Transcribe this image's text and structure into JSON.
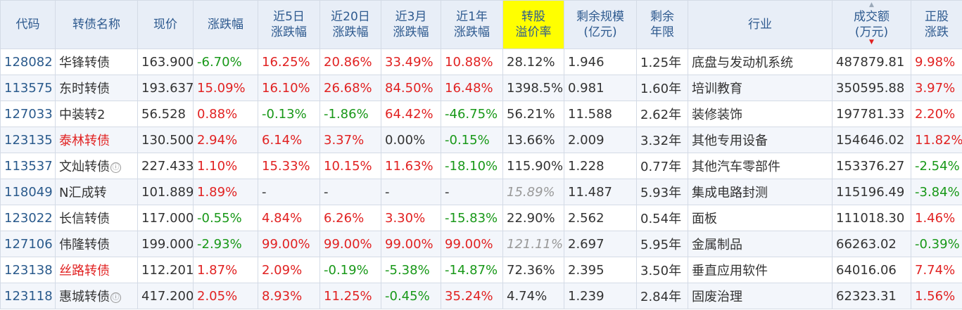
{
  "headers": {
    "code": "代码",
    "name": "转债名称",
    "price": "现价",
    "change": "涨跌幅",
    "change_5d_1": "近5日",
    "change_5d_2": "涨跌幅",
    "change_20d_1": "近20日",
    "change_20d_2": "涨跌幅",
    "change_3m_1": "近3月",
    "change_3m_2": "涨跌幅",
    "change_1y_1": "近1年",
    "change_1y_2": "涨跌幅",
    "premium_1": "转股",
    "premium_2": "溢价率",
    "scale_1": "剩余规模",
    "scale_2": "(亿元)",
    "term_1": "剩余",
    "term_2": "年限",
    "industry": "行业",
    "volume_1": "成交额",
    "volume_2": "(万元)",
    "stock_1": "正股",
    "stock_2": "涨跌"
  },
  "info_icon": "ⓘ",
  "rows": [
    {
      "code": "128082",
      "name": "华锋转债",
      "name_color": "normal",
      "info": false,
      "price": "163.900",
      "change": "-6.70%",
      "change_c": "green",
      "d5": "16.25%",
      "d5_c": "red",
      "d20": "20.86%",
      "d20_c": "red",
      "m3": "33.49%",
      "m3_c": "red",
      "y1": "10.88%",
      "y1_c": "red",
      "premium": "28.12%",
      "premium_c": "normal",
      "scale": "1.946",
      "term": "1.25年",
      "industry": "底盘与发动机系统",
      "volume": "487879.81",
      "stock": "9.98%",
      "stock_c": "red"
    },
    {
      "code": "113575",
      "name": "东时转债",
      "name_color": "normal",
      "info": false,
      "price": "193.637",
      "change": "15.09%",
      "change_c": "red",
      "d5": "16.10%",
      "d5_c": "red",
      "d20": "26.68%",
      "d20_c": "red",
      "m3": "84.50%",
      "m3_c": "red",
      "y1": "16.48%",
      "y1_c": "red",
      "premium": "1398.5%",
      "premium_c": "normal",
      "scale": "0.981",
      "term": "1.60年",
      "industry": "培训教育",
      "volume": "350595.88",
      "stock": "3.97%",
      "stock_c": "red"
    },
    {
      "code": "127033",
      "name": "中装转2",
      "name_color": "normal",
      "info": false,
      "price": "56.528",
      "change": "0.88%",
      "change_c": "red",
      "d5": "-0.13%",
      "d5_c": "green",
      "d20": "-1.86%",
      "d20_c": "green",
      "m3": "64.42%",
      "m3_c": "red",
      "y1": "-46.75%",
      "y1_c": "green",
      "premium": "56.21%",
      "premium_c": "normal",
      "scale": "11.588",
      "term": "2.62年",
      "industry": "装修装饰",
      "volume": "197781.33",
      "stock": "2.20%",
      "stock_c": "red"
    },
    {
      "code": "123135",
      "name": "泰林转债",
      "name_color": "red",
      "info": false,
      "price": "130.500",
      "change": "2.94%",
      "change_c": "red",
      "d5": "6.14%",
      "d5_c": "red",
      "d20": "3.37%",
      "d20_c": "red",
      "m3": "0.00%",
      "m3_c": "normal",
      "y1": "-0.15%",
      "y1_c": "green",
      "premium": "13.66%",
      "premium_c": "normal",
      "scale": "2.009",
      "term": "3.32年",
      "industry": "其他专用设备",
      "volume": "154646.02",
      "stock": "11.82%",
      "stock_c": "red"
    },
    {
      "code": "113537",
      "name": "文灿转债",
      "name_color": "normal",
      "info": true,
      "price": "227.433",
      "change": "1.10%",
      "change_c": "red",
      "d5": "15.33%",
      "d5_c": "red",
      "d20": "10.15%",
      "d20_c": "red",
      "m3": "11.63%",
      "m3_c": "red",
      "y1": "-18.10%",
      "y1_c": "green",
      "premium": "115.90%",
      "premium_c": "normal",
      "scale": "1.228",
      "term": "0.77年",
      "industry": "其他汽车零部件",
      "volume": "153376.27",
      "stock": "-2.54%",
      "stock_c": "green"
    },
    {
      "code": "118049",
      "name": "N汇成转",
      "name_color": "normal",
      "info": false,
      "price": "101.889",
      "change": "1.89%",
      "change_c": "red",
      "d5": "-",
      "d5_c": "normal",
      "d20": "-",
      "d20_c": "normal",
      "m3": "-",
      "m3_c": "normal",
      "y1": "-",
      "y1_c": "normal",
      "premium": "15.89%",
      "premium_c": "grey",
      "scale": "11.487",
      "term": "5.93年",
      "industry": "集成电路封测",
      "volume": "115196.49",
      "stock": "-3.84%",
      "stock_c": "green"
    },
    {
      "code": "123022",
      "name": "长信转债",
      "name_color": "normal",
      "info": false,
      "price": "117.000",
      "change": "-0.55%",
      "change_c": "green",
      "d5": "4.84%",
      "d5_c": "red",
      "d20": "6.26%",
      "d20_c": "red",
      "m3": "3.30%",
      "m3_c": "red",
      "y1": "-15.83%",
      "y1_c": "green",
      "premium": "22.90%",
      "premium_c": "normal",
      "scale": "2.562",
      "term": "0.54年",
      "industry": "面板",
      "volume": "111018.30",
      "stock": "1.46%",
      "stock_c": "red"
    },
    {
      "code": "127106",
      "name": "伟隆转债",
      "name_color": "normal",
      "info": false,
      "price": "199.000",
      "change": "-2.93%",
      "change_c": "green",
      "d5": "99.00%",
      "d5_c": "red",
      "d20": "99.00%",
      "d20_c": "red",
      "m3": "99.00%",
      "m3_c": "red",
      "y1": "99.00%",
      "y1_c": "red",
      "premium": "121.11%",
      "premium_c": "grey",
      "scale": "2.697",
      "term": "5.95年",
      "industry": "金属制品",
      "volume": "66263.02",
      "stock": "-0.39%",
      "stock_c": "green"
    },
    {
      "code": "123138",
      "name": "丝路转债",
      "name_color": "red",
      "info": false,
      "price": "112.201",
      "change": "1.87%",
      "change_c": "red",
      "d5": "2.09%",
      "d5_c": "red",
      "d20": "-0.19%",
      "d20_c": "green",
      "m3": "-5.38%",
      "m3_c": "green",
      "y1": "-14.87%",
      "y1_c": "green",
      "premium": "72.36%",
      "premium_c": "normal",
      "scale": "2.395",
      "term": "3.50年",
      "industry": "垂直应用软件",
      "volume": "64016.06",
      "stock": "7.74%",
      "stock_c": "red"
    },
    {
      "code": "123118",
      "name": "惠城转债",
      "name_color": "normal",
      "info": true,
      "price": "417.200",
      "change": "2.05%",
      "change_c": "red",
      "d5": "8.93%",
      "d5_c": "red",
      "d20": "11.25%",
      "d20_c": "red",
      "m3": "-0.45%",
      "m3_c": "green",
      "y1": "35.24%",
      "y1_c": "red",
      "premium": "4.74%",
      "premium_c": "normal",
      "scale": "1.239",
      "term": "2.84年",
      "industry": "固废治理",
      "volume": "62323.31",
      "stock": "1.56%",
      "stock_c": "red"
    }
  ]
}
